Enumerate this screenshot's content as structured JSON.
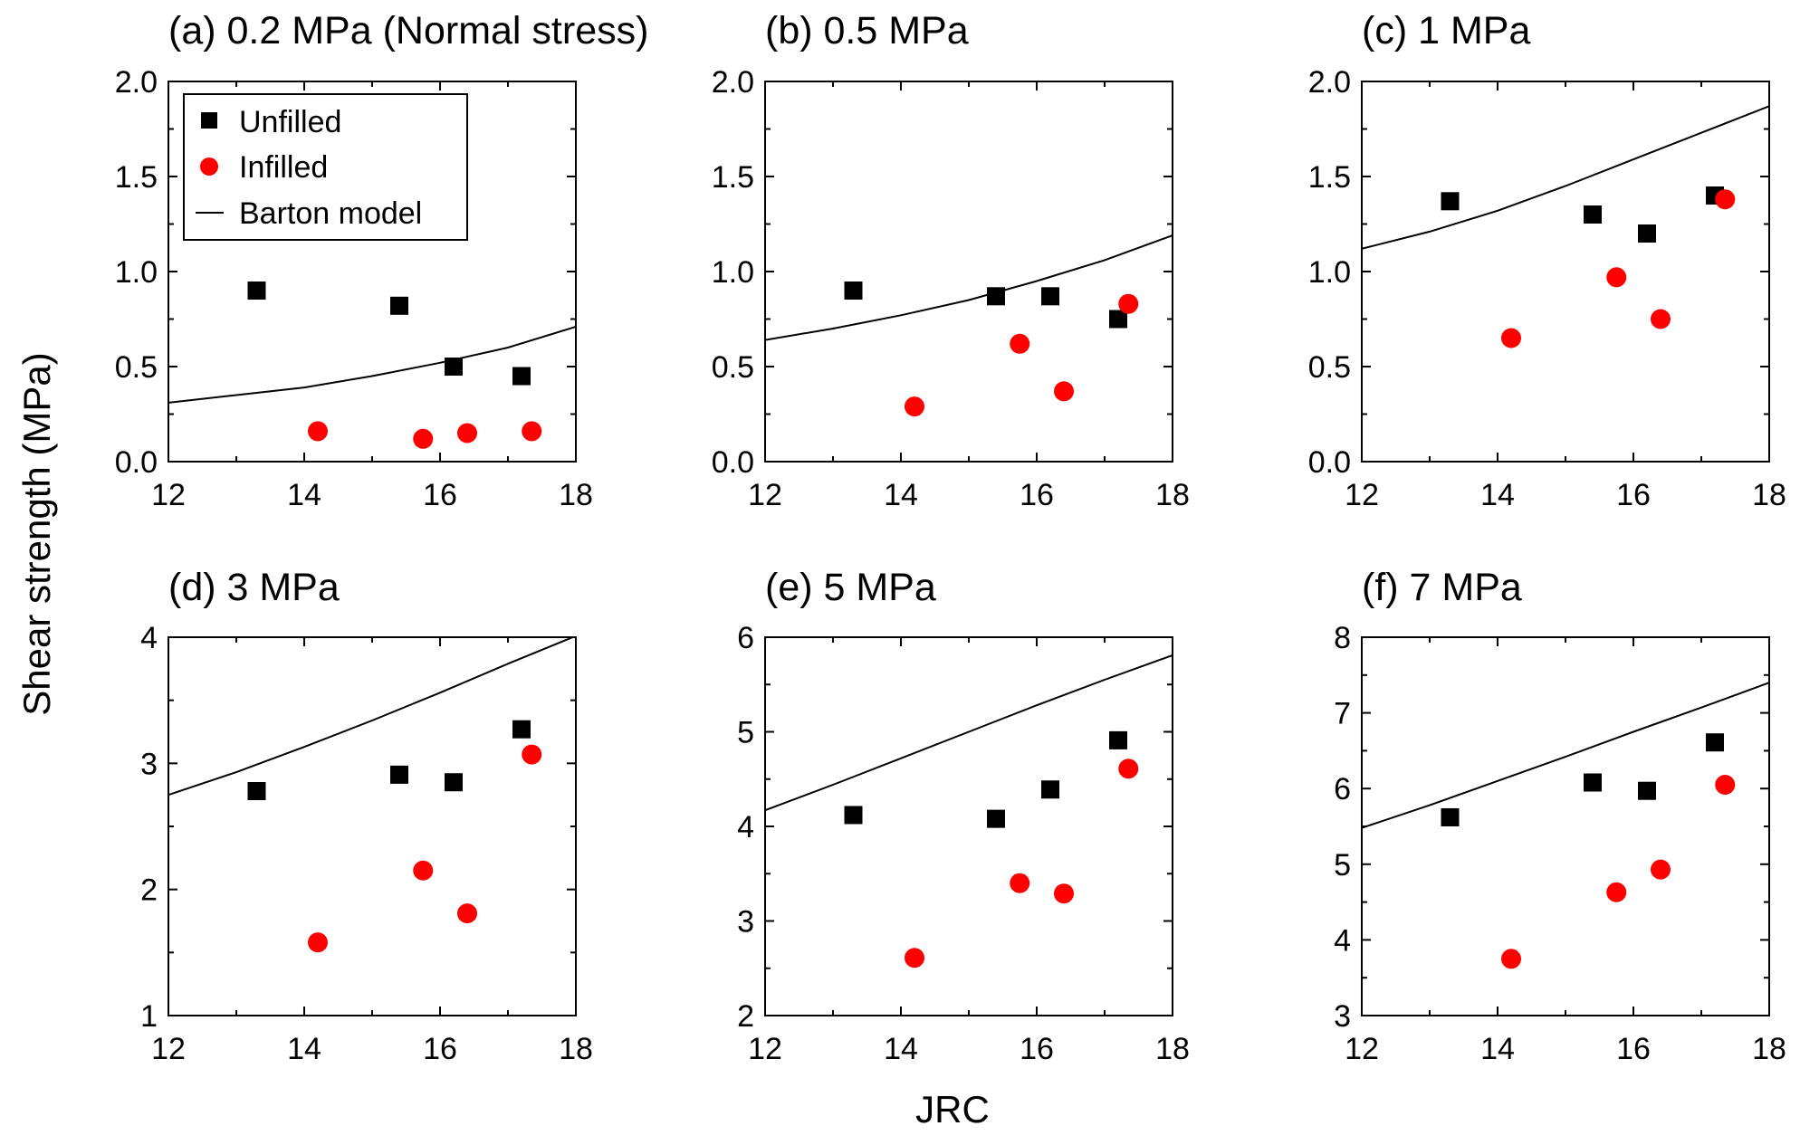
{
  "figure": {
    "ylabel": "Shear strength (MPa)",
    "xlabel": "JRC"
  },
  "legend": {
    "unfilled": "Unfilled",
    "infilled": "Infilled",
    "model": "Barton model"
  },
  "colors": {
    "unfilled": "#000000",
    "infilled": "#ff0000",
    "model": "#000000"
  },
  "chart_data": [
    {
      "type": "scatter",
      "title": "(a) 0.2 MPa (Normal stress)",
      "xlabel": "JRC",
      "ylabel": "Shear strength (MPa)",
      "xlim": [
        12,
        18
      ],
      "ylim": [
        0.0,
        2.0
      ],
      "xticks": [
        12,
        14,
        16,
        18
      ],
      "yticks": [
        0.0,
        0.5,
        1.0,
        1.5,
        2.0
      ],
      "ytick_labels": [
        "0.0",
        "0.5",
        "1.0",
        "1.5",
        "2.0"
      ],
      "series": [
        {
          "name": "Unfilled",
          "marker": "square",
          "x": [
            13.3,
            15.4,
            16.2,
            17.2
          ],
          "y": [
            0.9,
            0.82,
            0.5,
            0.45
          ]
        },
        {
          "name": "Infilled",
          "marker": "circle",
          "x": [
            14.2,
            15.75,
            16.4,
            17.35
          ],
          "y": [
            0.16,
            0.12,
            0.15,
            0.16
          ]
        },
        {
          "name": "Barton model",
          "marker": "line",
          "x": [
            12,
            13,
            14,
            15,
            16,
            17,
            18
          ],
          "y": [
            0.31,
            0.35,
            0.39,
            0.45,
            0.52,
            0.6,
            0.71
          ]
        }
      ]
    },
    {
      "type": "scatter",
      "title": "(b) 0.5 MPa",
      "xlabel": "JRC",
      "ylabel": "Shear strength (MPa)",
      "xlim": [
        12,
        18
      ],
      "ylim": [
        0.0,
        2.0
      ],
      "xticks": [
        12,
        14,
        16,
        18
      ],
      "yticks": [
        0.0,
        0.5,
        1.0,
        1.5,
        2.0
      ],
      "ytick_labels": [
        "0.0",
        "0.5",
        "1.0",
        "1.5",
        "2.0"
      ],
      "series": [
        {
          "name": "Unfilled",
          "marker": "square",
          "x": [
            13.3,
            15.4,
            16.2,
            17.2
          ],
          "y": [
            0.9,
            0.87,
            0.87,
            0.75
          ]
        },
        {
          "name": "Infilled",
          "marker": "circle",
          "x": [
            14.2,
            15.75,
            16.4,
            17.35
          ],
          "y": [
            0.29,
            0.62,
            0.37,
            0.83
          ]
        },
        {
          "name": "Barton model",
          "marker": "line",
          "x": [
            12,
            13,
            14,
            15,
            16,
            17,
            18
          ],
          "y": [
            0.64,
            0.7,
            0.77,
            0.85,
            0.95,
            1.06,
            1.19
          ]
        }
      ]
    },
    {
      "type": "scatter",
      "title": "(c) 1 MPa",
      "xlabel": "JRC",
      "ylabel": "Shear strength (MPa)",
      "xlim": [
        12,
        18
      ],
      "ylim": [
        0.0,
        2.0
      ],
      "xticks": [
        12,
        14,
        16,
        18
      ],
      "yticks": [
        0.0,
        0.5,
        1.0,
        1.5,
        2.0
      ],
      "ytick_labels": [
        "0.0",
        "0.5",
        "1.0",
        "1.5",
        "2.0"
      ],
      "series": [
        {
          "name": "Unfilled",
          "marker": "square",
          "x": [
            13.3,
            15.4,
            16.2,
            17.2
          ],
          "y": [
            1.37,
            1.3,
            1.2,
            1.4
          ]
        },
        {
          "name": "Infilled",
          "marker": "circle",
          "x": [
            14.2,
            15.75,
            16.4,
            17.35
          ],
          "y": [
            0.65,
            0.97,
            0.75,
            1.38
          ]
        },
        {
          "name": "Barton model",
          "marker": "line",
          "x": [
            12,
            13,
            14,
            15,
            16,
            17,
            18
          ],
          "y": [
            1.12,
            1.21,
            1.32,
            1.45,
            1.59,
            1.73,
            1.87
          ]
        }
      ]
    },
    {
      "type": "scatter",
      "title": "(d) 3 MPa",
      "xlabel": "JRC",
      "ylabel": "Shear strength (MPa)",
      "xlim": [
        12,
        18
      ],
      "ylim": [
        1,
        4
      ],
      "xticks": [
        12,
        14,
        16,
        18
      ],
      "yticks": [
        1,
        2,
        3,
        4
      ],
      "ytick_labels": [
        "1",
        "2",
        "3",
        "4"
      ],
      "series": [
        {
          "name": "Unfilled",
          "marker": "square",
          "x": [
            13.3,
            15.4,
            16.2,
            17.2
          ],
          "y": [
            2.78,
            2.91,
            2.85,
            3.27
          ]
        },
        {
          "name": "Infilled",
          "marker": "circle",
          "x": [
            14.2,
            15.75,
            16.4,
            17.35
          ],
          "y": [
            1.58,
            2.15,
            1.81,
            3.07
          ]
        },
        {
          "name": "Barton model",
          "marker": "line",
          "x": [
            12,
            13,
            14,
            15,
            16,
            17,
            18
          ],
          "y": [
            2.75,
            2.93,
            3.13,
            3.34,
            3.56,
            3.79,
            4.01
          ]
        }
      ]
    },
    {
      "type": "scatter",
      "title": "(e) 5 MPa",
      "xlabel": "JRC",
      "ylabel": "Shear strength (MPa)",
      "xlim": [
        12,
        18
      ],
      "ylim": [
        2,
        6
      ],
      "xticks": [
        12,
        14,
        16,
        18
      ],
      "yticks": [
        2,
        3,
        4,
        5,
        6
      ],
      "ytick_labels": [
        "2",
        "3",
        "4",
        "5",
        "6"
      ],
      "series": [
        {
          "name": "Unfilled",
          "marker": "square",
          "x": [
            13.3,
            15.4,
            16.2,
            17.2
          ],
          "y": [
            4.12,
            4.08,
            4.39,
            4.91
          ]
        },
        {
          "name": "Infilled",
          "marker": "circle",
          "x": [
            14.2,
            15.75,
            16.4,
            17.35
          ],
          "y": [
            2.61,
            3.4,
            3.29,
            4.61
          ]
        },
        {
          "name": "Barton model",
          "marker": "line",
          "x": [
            12,
            13,
            14,
            15,
            16,
            17,
            18
          ],
          "y": [
            4.17,
            4.44,
            4.72,
            5.0,
            5.28,
            5.55,
            5.81
          ]
        }
      ]
    },
    {
      "type": "scatter",
      "title": "(f) 7 MPa",
      "xlabel": "JRC",
      "ylabel": "Shear strength (MPa)",
      "xlim": [
        12,
        18
      ],
      "ylim": [
        3,
        8
      ],
      "xticks": [
        12,
        14,
        16,
        18
      ],
      "yticks": [
        3,
        4,
        5,
        6,
        7,
        8
      ],
      "ytick_labels": [
        "3",
        "4",
        "5",
        "6",
        "7",
        "8"
      ],
      "series": [
        {
          "name": "Unfilled",
          "marker": "square",
          "x": [
            13.3,
            15.4,
            16.2,
            17.2
          ],
          "y": [
            5.62,
            6.08,
            5.97,
            6.61
          ]
        },
        {
          "name": "Infilled",
          "marker": "circle",
          "x": [
            14.2,
            15.75,
            16.4,
            17.35
          ],
          "y": [
            3.75,
            4.63,
            4.93,
            6.05
          ]
        },
        {
          "name": "Barton model",
          "marker": "line",
          "x": [
            12,
            13,
            14,
            15,
            16,
            17,
            18
          ],
          "y": [
            5.48,
            5.78,
            6.1,
            6.42,
            6.75,
            7.07,
            7.4
          ]
        }
      ]
    }
  ]
}
